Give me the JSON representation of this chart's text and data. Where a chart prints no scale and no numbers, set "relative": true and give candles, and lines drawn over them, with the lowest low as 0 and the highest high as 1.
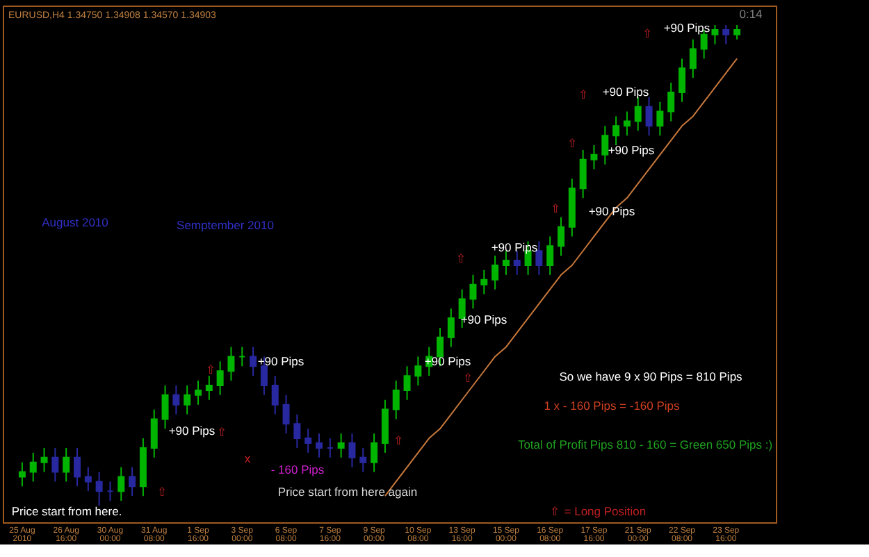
{
  "chart_data": {
    "type": "candlestick",
    "relative": true,
    "title": "EURUSD,H4  1.34750 1.34908 1.34570 1.34903",
    "categories": [
      "25 Aug 2010",
      null,
      null,
      null,
      "26 Aug 16:00",
      null,
      null,
      null,
      "30 Aug 00:00",
      null,
      null,
      null,
      "31 Aug 08:00",
      null,
      null,
      null,
      "1 Sep 16:00",
      null,
      null,
      null,
      "3 Sep 00:00",
      null,
      null,
      null,
      "6 Sep 08:00",
      null,
      null,
      null,
      "7 Sep 16:00",
      null,
      null,
      null,
      "9 Sep 00:00",
      null,
      null,
      null,
      "10 Sep 08:00",
      null,
      null,
      null,
      "13 Sep 16:00",
      null,
      null,
      null,
      "15 Sep 00:00",
      null,
      null,
      null,
      "16 Sep 08:00",
      null,
      null,
      null,
      "17 Sep 16:00",
      null,
      null,
      null,
      "21 Sep 00:00",
      null,
      null,
      null,
      "22 Sep 08:00",
      null,
      null,
      null,
      "23 Sep 16:00",
      null
    ],
    "ohlc": [
      [
        0.06,
        0.09,
        0.04,
        0.07
      ],
      [
        0.07,
        0.11,
        0.05,
        0.09
      ],
      [
        0.09,
        0.12,
        0.07,
        0.1
      ],
      [
        0.1,
        0.12,
        0.05,
        0.07
      ],
      [
        0.07,
        0.12,
        0.05,
        0.1
      ],
      [
        0.1,
        0.12,
        0.04,
        0.06
      ],
      [
        0.06,
        0.08,
        0.03,
        0.05
      ],
      [
        0.05,
        0.07,
        0.0,
        0.03
      ],
      [
        0.03,
        0.05,
        0.01,
        0.03
      ],
      [
        0.03,
        0.08,
        0.01,
        0.06
      ],
      [
        0.06,
        0.08,
        0.02,
        0.04
      ],
      [
        0.04,
        0.14,
        0.02,
        0.12
      ],
      [
        0.12,
        0.2,
        0.1,
        0.18
      ],
      [
        0.18,
        0.25,
        0.16,
        0.23
      ],
      [
        0.23,
        0.25,
        0.19,
        0.21
      ],
      [
        0.21,
        0.25,
        0.19,
        0.23
      ],
      [
        0.23,
        0.26,
        0.21,
        0.24
      ],
      [
        0.24,
        0.27,
        0.22,
        0.25
      ],
      [
        0.25,
        0.3,
        0.23,
        0.28
      ],
      [
        0.28,
        0.33,
        0.26,
        0.31
      ],
      [
        0.31,
        0.33,
        0.29,
        0.31
      ],
      [
        0.31,
        0.33,
        0.27,
        0.29
      ],
      [
        0.29,
        0.31,
        0.23,
        0.25
      ],
      [
        0.25,
        0.27,
        0.19,
        0.21
      ],
      [
        0.21,
        0.23,
        0.15,
        0.17
      ],
      [
        0.17,
        0.19,
        0.12,
        0.14
      ],
      [
        0.14,
        0.16,
        0.11,
        0.13
      ],
      [
        0.13,
        0.15,
        0.1,
        0.12
      ],
      [
        0.12,
        0.14,
        0.1,
        0.12
      ],
      [
        0.12,
        0.15,
        0.1,
        0.13
      ],
      [
        0.13,
        0.15,
        0.08,
        0.1
      ],
      [
        0.1,
        0.12,
        0.07,
        0.09
      ],
      [
        0.09,
        0.15,
        0.07,
        0.13
      ],
      [
        0.13,
        0.22,
        0.11,
        0.2
      ],
      [
        0.2,
        0.26,
        0.18,
        0.24
      ],
      [
        0.24,
        0.29,
        0.22,
        0.27
      ],
      [
        0.27,
        0.31,
        0.25,
        0.29
      ],
      [
        0.29,
        0.33,
        0.27,
        0.31
      ],
      [
        0.31,
        0.37,
        0.29,
        0.35
      ],
      [
        0.35,
        0.41,
        0.33,
        0.39
      ],
      [
        0.39,
        0.45,
        0.37,
        0.43
      ],
      [
        0.43,
        0.48,
        0.41,
        0.46
      ],
      [
        0.46,
        0.49,
        0.44,
        0.47
      ],
      [
        0.47,
        0.52,
        0.45,
        0.5
      ],
      [
        0.5,
        0.53,
        0.48,
        0.51
      ],
      [
        0.51,
        0.53,
        0.48,
        0.5
      ],
      [
        0.5,
        0.55,
        0.48,
        0.53
      ],
      [
        0.53,
        0.55,
        0.48,
        0.5
      ],
      [
        0.5,
        0.56,
        0.48,
        0.54
      ],
      [
        0.54,
        0.6,
        0.52,
        0.58
      ],
      [
        0.58,
        0.68,
        0.56,
        0.66
      ],
      [
        0.66,
        0.74,
        0.64,
        0.72
      ],
      [
        0.72,
        0.75,
        0.7,
        0.73
      ],
      [
        0.73,
        0.79,
        0.71,
        0.77
      ],
      [
        0.77,
        0.81,
        0.75,
        0.79
      ],
      [
        0.79,
        0.82,
        0.77,
        0.8
      ],
      [
        0.8,
        0.85,
        0.78,
        0.83
      ],
      [
        0.83,
        0.85,
        0.77,
        0.79
      ],
      [
        0.79,
        0.84,
        0.77,
        0.82
      ],
      [
        0.82,
        0.88,
        0.8,
        0.86
      ],
      [
        0.86,
        0.93,
        0.84,
        0.91
      ],
      [
        0.91,
        0.97,
        0.89,
        0.95
      ],
      [
        0.95,
        0.99,
        0.93,
        0.98
      ],
      [
        0.98,
        1.0,
        0.96,
        0.99
      ],
      [
        0.99,
        1.0,
        0.96,
        0.98
      ],
      [
        0.98,
        1.0,
        0.97,
        0.99
      ]
    ],
    "colors": [
      "#00b400",
      "#00b400",
      "#00b400",
      "#2828a0",
      "#00b400",
      "#2828a0",
      "#2828a0",
      "#2828a0",
      "#2828a0",
      "#00b400",
      "#2828a0",
      "#00b400",
      "#00b400",
      "#00b400",
      "#2828a0",
      "#00b400",
      "#00b400",
      "#00b400",
      "#00b400",
      "#00b400",
      "#00b400",
      "#2828a0",
      "#2828a0",
      "#2828a0",
      "#2828a0",
      "#2828a0",
      "#2828a0",
      "#2828a0",
      "#2828a0",
      "#00b400",
      "#2828a0",
      "#2828a0",
      "#00b400",
      "#00b400",
      "#00b400",
      "#00b400",
      "#00b400",
      "#00b400",
      "#00b400",
      "#00b400",
      "#00b400",
      "#00b400",
      "#00b400",
      "#00b400",
      "#00b400",
      "#2828a0",
      "#00b400",
      "#2828a0",
      "#00b400",
      "#00b400",
      "#00b400",
      "#00b400",
      "#00b400",
      "#00b400",
      "#00b400",
      "#00b400",
      "#00b400",
      "#2828a0",
      "#00b400",
      "#00b400",
      "#00b400",
      "#00b400",
      "#00b400",
      "#00b400",
      "#2828a0",
      "#00b400"
    ],
    "series": [
      {
        "type": "line",
        "color": "#c8783c",
        "values": [
          null,
          null,
          null,
          null,
          null,
          null,
          null,
          null,
          null,
          null,
          null,
          null,
          null,
          null,
          null,
          null,
          null,
          null,
          null,
          null,
          null,
          null,
          null,
          null,
          null,
          null,
          null,
          null,
          null,
          null,
          null,
          null,
          null,
          0.02,
          0.05,
          0.08,
          0.11,
          0.14,
          0.16,
          0.19,
          0.22,
          0.25,
          0.28,
          0.31,
          0.33,
          0.36,
          0.39,
          0.42,
          0.45,
          0.48,
          0.5,
          0.53,
          0.56,
          0.59,
          0.62,
          0.64,
          0.67,
          0.7,
          0.73,
          0.76,
          0.79,
          0.81,
          0.84,
          0.87,
          0.9,
          0.93
        ]
      }
    ],
    "annotations": [
      "August 2010",
      "Semptember 2010",
      "+90 Pips",
      "+90 Pips",
      "+90 Pips",
      "+90 Pips",
      "+90 Pips",
      "+90 Pips",
      "+90 Pips",
      "+90 Pips",
      "+90 Pips",
      "- 160 Pips",
      "Price start from here again",
      "Price start from here.",
      "So we have 9 x 90 Pips = 810 Pips",
      "1 x - 160 Pips = -160 Pips",
      "Total of Profit Pips 810 - 160 =  Green 650 Pips :)",
      "⇧ = Long Position",
      "0:14",
      "⇧",
      "⇧",
      "⇧",
      "⇧",
      "⇧",
      "⇧",
      "⇧",
      "⇧",
      "⇧",
      "⇧",
      "x"
    ]
  }
}
